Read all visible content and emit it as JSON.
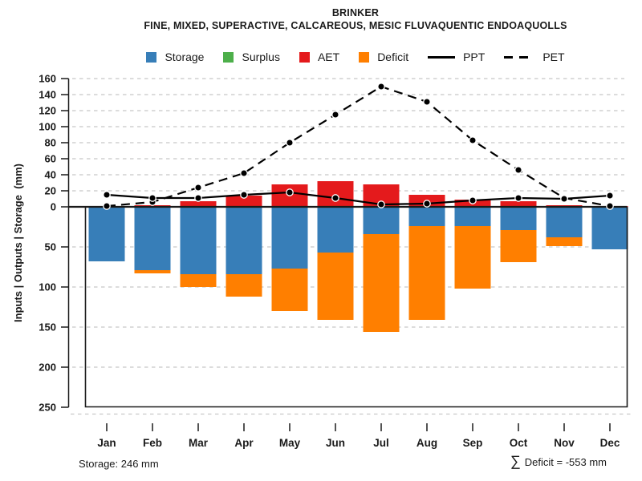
{
  "header": {
    "title": "BRINKER",
    "subtitle": "FINE, MIXED, SUPERACTIVE, CALCAREOUS, MESIC FLUVAQUENTIC ENDOAQUOLLS"
  },
  "legend": {
    "items": [
      {
        "label": "Storage",
        "series": "Storage",
        "kind": "swatch"
      },
      {
        "label": "Surplus",
        "series": "Surplus",
        "kind": "swatch"
      },
      {
        "label": "AET",
        "series": "AET",
        "kind": "swatch"
      },
      {
        "label": "Deficit",
        "series": "Deficit",
        "kind": "swatch"
      },
      {
        "label": "PPT",
        "series": "PPT",
        "kind": "line-solid"
      },
      {
        "label": "PET",
        "series": "PET",
        "kind": "line-dashed"
      }
    ]
  },
  "footer": {
    "storage_note": "Storage: 246 mm",
    "sigma": "∑",
    "deficit_note": "Deficit = -553 mm"
  },
  "chart_data": {
    "type": "bar+line water-balance composite",
    "title": "BRINKER",
    "subtitle": "FINE, MIXED, SUPERACTIVE, CALCAREOUS, MESIC FLUVAQUENTIC ENDOAQUOLLS",
    "categories": [
      "Jan",
      "Feb",
      "Mar",
      "Apr",
      "May",
      "Jun",
      "Jul",
      "Aug",
      "Sep",
      "Oct",
      "Nov",
      "Dec"
    ],
    "ylabel": "Inputs | Outputs | Storage  (mm)",
    "ylim": [
      -250,
      160
    ],
    "grid": "dashed horizontal gridlines every 20 mm above zero and every 50 mm below zero",
    "legend_position": "top-center",
    "y_axis": {
      "upper_ticks": [
        160,
        140,
        120,
        100,
        80,
        60,
        40,
        20
      ],
      "zero_tick": 0,
      "lower_ticks_abs": [
        50,
        100,
        150,
        200,
        250
      ],
      "note": "values below zero are labeled with absolute magnitudes"
    },
    "series": [
      {
        "name": "Storage",
        "type": "bar",
        "direction": "below-zero",
        "color": "#377EB8",
        "values": [
          68,
          79,
          84,
          84,
          77,
          57,
          34,
          24,
          24,
          29,
          38,
          53
        ]
      },
      {
        "name": "Surplus",
        "type": "bar",
        "direction": "above-zero",
        "color": "#4DAF4A",
        "values": [
          0,
          0,
          0,
          0,
          0,
          0,
          0,
          0,
          0,
          0,
          0,
          0
        ]
      },
      {
        "name": "AET",
        "type": "bar",
        "direction": "above-zero",
        "color": "#E41A1C",
        "values": [
          0,
          2,
          7,
          14,
          28,
          32,
          28,
          15,
          9,
          7,
          2,
          1
        ]
      },
      {
        "name": "Deficit",
        "type": "bar",
        "direction": "below-zero-stacked-under-storage",
        "color": "#FF7F00",
        "values": [
          0,
          4,
          16,
          28,
          53,
          84,
          122,
          117,
          78,
          40,
          11,
          0
        ]
      },
      {
        "name": "PPT",
        "type": "line",
        "style": "solid",
        "marker": "filled-circle",
        "color": "#000000",
        "values": [
          15,
          11,
          11,
          15,
          18,
          11,
          3,
          4,
          8,
          11,
          10,
          14
        ]
      },
      {
        "name": "PET",
        "type": "line",
        "style": "dashed",
        "marker": "filled-circle",
        "color": "#000000",
        "values": [
          1,
          6,
          24,
          42,
          80,
          115,
          150,
          131,
          83,
          46,
          11,
          1
        ]
      }
    ],
    "totals": {
      "storage_capacity_mm": 246,
      "sum_deficit_mm": -553
    },
    "colors": {
      "grid": "#c8c8c8",
      "axis": "#1a1a1a",
      "zero_line": "#1a1a1a"
    }
  }
}
